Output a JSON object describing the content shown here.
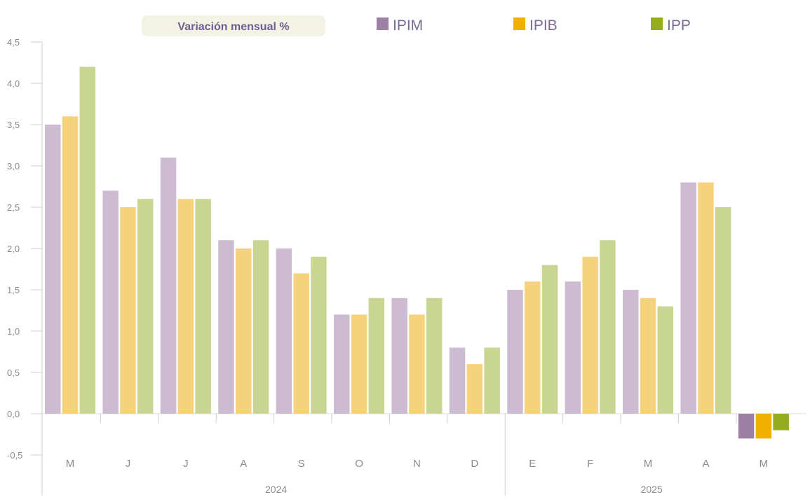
{
  "chart_data": {
    "type": "bar",
    "title": "Variación mensual %",
    "categories": [
      "M",
      "J",
      "J",
      "A",
      "S",
      "O",
      "N",
      "D",
      "E",
      "F",
      "M",
      "A",
      "M"
    ],
    "groups": [
      {
        "label": "2024",
        "from": 0,
        "to": 7
      },
      {
        "label": "2025",
        "from": 8,
        "to": 12
      }
    ],
    "series": [
      {
        "name": "IPIM",
        "color": "#cdbbd1",
        "highlight_color": "#9e7fa6",
        "values": [
          3.5,
          2.7,
          3.1,
          2.1,
          2.0,
          1.2,
          1.4,
          0.8,
          1.5,
          1.6,
          1.5,
          2.8,
          -0.3
        ]
      },
      {
        "name": "IPIB",
        "color": "#f6d27c",
        "highlight_color": "#f0b000",
        "values": [
          3.6,
          2.5,
          2.6,
          2.0,
          1.7,
          1.2,
          1.2,
          0.6,
          1.6,
          1.9,
          1.4,
          2.8,
          -0.3
        ]
      },
      {
        "name": "IPP",
        "color": "#c8d692",
        "highlight_color": "#95ac1e",
        "values": [
          4.2,
          2.6,
          2.6,
          2.1,
          1.9,
          1.4,
          1.4,
          0.8,
          1.8,
          2.1,
          1.3,
          2.5,
          -0.2
        ]
      }
    ],
    "highlight_last": true,
    "ylim": [
      -0.5,
      4.5
    ],
    "yticks": [
      "4,5",
      "4,0",
      "3,5",
      "3,0",
      "2,5",
      "2,0",
      "1,5",
      "1,0",
      "0,5",
      "0,0",
      "-0,5"
    ],
    "ytick_values": [
      4.5,
      4.0,
      3.5,
      3.0,
      2.5,
      2.0,
      1.5,
      1.0,
      0.5,
      0.0,
      -0.5
    ],
    "grid": false,
    "legend_position": "top"
  }
}
